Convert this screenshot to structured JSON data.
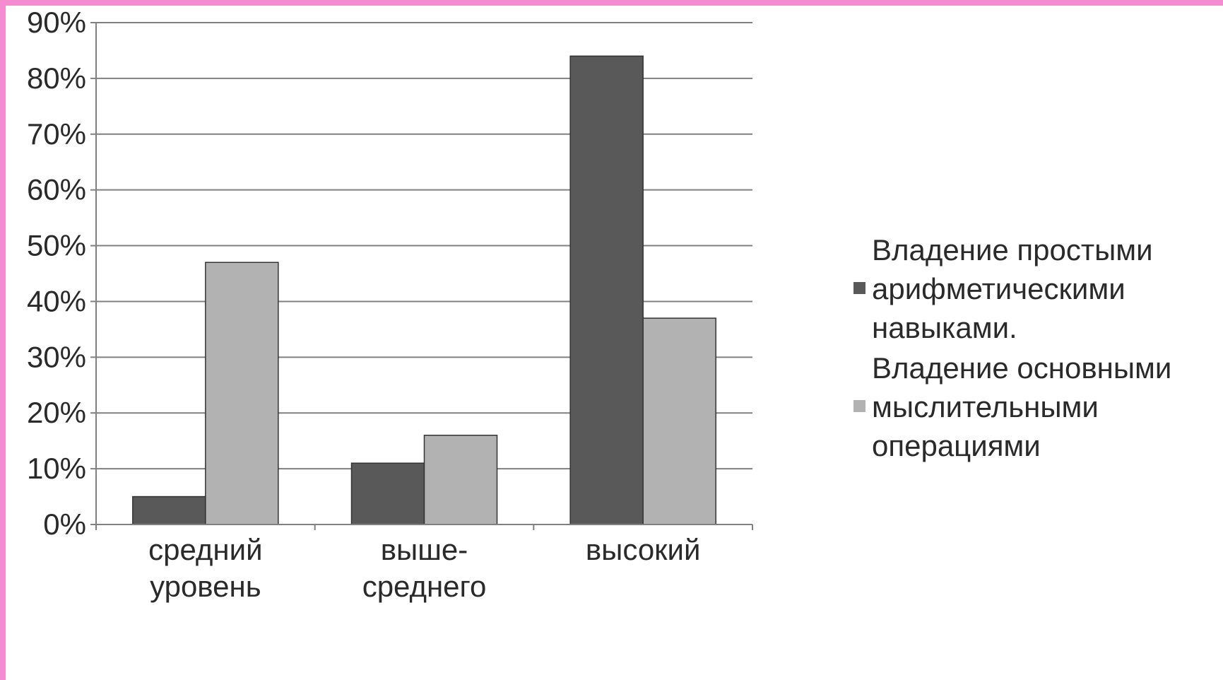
{
  "chart_data": {
    "type": "bar",
    "categories": [
      [
        "средний",
        "уровень"
      ],
      [
        "выше-",
        "среднего"
      ],
      [
        "высокий"
      ]
    ],
    "series": [
      {
        "name": "Владение простыми арифметическими навыками.",
        "name_lines": [
          "Владение простыми",
          "арифметическими",
          "навыками."
        ],
        "color": "#595959",
        "values": [
          5,
          11,
          84
        ]
      },
      {
        "name": "Владение основными мыслительными операциями",
        "name_lines": [
          "Владение основными",
          "мыслительными",
          "операциями"
        ],
        "color": "#b2b2b2",
        "values": [
          47,
          16,
          37
        ]
      }
    ],
    "yticks": [
      "0%",
      "10%",
      "20%",
      "30%",
      "40%",
      "50%",
      "60%",
      "70%",
      "80%",
      "90%"
    ],
    "ylim": [
      0,
      90
    ],
    "ylabel_format": "percent",
    "grid": true,
    "legend_position": "right",
    "title": "",
    "xlabel": "",
    "ylabel": ""
  }
}
